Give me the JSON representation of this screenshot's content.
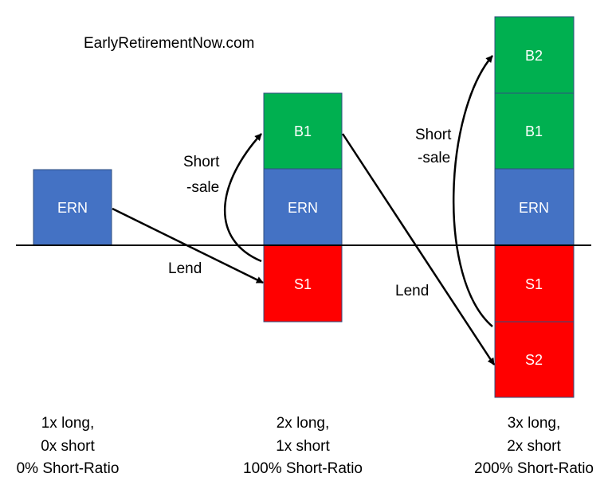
{
  "watermark": "EarlyRetirementNow.com",
  "colors": {
    "long": "#4472c4",
    "borrowed": "#00b050",
    "short": "#ff0000",
    "border": "#2f4f7f",
    "arrow": "#000000"
  },
  "boxes": {
    "col1_ern": "ERN",
    "col2_b1": "B1",
    "col2_ern": "ERN",
    "col2_s1": "S1",
    "col3_b2": "B2",
    "col3_b1": "B1",
    "col3_ern": "ERN",
    "col3_s1": "S1",
    "col3_s2": "S2"
  },
  "labels": {
    "short_sale_1_line1": "Short",
    "short_sale_1_line2": "-sale",
    "short_sale_2_line1": "Short",
    "short_sale_2_line2": "-sale",
    "lend_1": "Lend",
    "lend_2": "Lend"
  },
  "captions": [
    {
      "line1": "1x long,",
      "line2": "0x short",
      "line3": "0% Short-Ratio"
    },
    {
      "line1": "2x long,",
      "line2": "1x short",
      "line3": "100% Short-Ratio"
    },
    {
      "line1": "3x long,",
      "line2": "2x short",
      "line3": "200% Short-Ratio"
    }
  ]
}
